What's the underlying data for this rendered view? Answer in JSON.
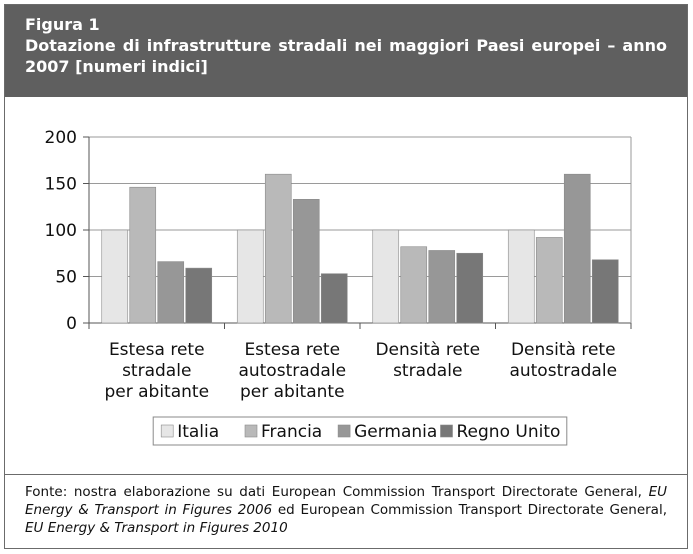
{
  "header": {
    "label": "Figura 1",
    "title": "Dotazione di infrastrutture stradali nei maggiori Paesi europei – anno 2007 [numeri indici]"
  },
  "chart_data": {
    "type": "bar",
    "title": "Dotazione di infrastrutture stradali nei maggiori Paesi europei – anno 2007 [numeri indici]",
    "categories": [
      [
        "Estesa rete",
        "stradale",
        "per abitante"
      ],
      [
        "Estesa rete",
        "autostradale",
        "per abitante"
      ],
      [
        "Densità rete",
        "stradale"
      ],
      [
        "Densità rete",
        "autostradale"
      ]
    ],
    "series": [
      {
        "name": "Italia",
        "values": [
          100,
          100,
          100,
          100
        ],
        "color": "#e6e6e6"
      },
      {
        "name": "Francia",
        "values": [
          146,
          160,
          82,
          92
        ],
        "color": "#b9b9b9"
      },
      {
        "name": "Germania",
        "values": [
          66,
          133,
          78,
          160
        ],
        "color": "#979797"
      },
      {
        "name": "Regno Unito",
        "values": [
          59,
          53,
          75,
          68
        ],
        "color": "#777777"
      }
    ],
    "ylim": [
      0,
      200
    ],
    "yticks": [
      0,
      50,
      100,
      150,
      200
    ],
    "grid": true,
    "legend": "bottom",
    "xlabel": "",
    "ylabel": ""
  },
  "source": {
    "prefix": "Fonte: nostra elaborazione su dati European Commission Transport Directorate General, ",
    "pub1": "EU Energy & Transport in Figures 2006",
    "middle": " ed European Commission Transport Directorate General, ",
    "pub2": "EU Energy & Transport in Figures 2010"
  }
}
